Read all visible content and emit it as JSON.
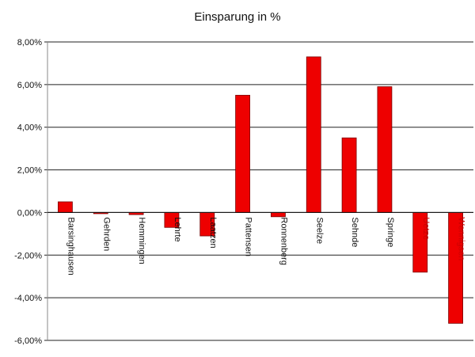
{
  "chart_data": {
    "type": "bar",
    "title": "Einsparung in %",
    "xlabel": "",
    "ylabel": "",
    "ylim": [
      -6,
      8
    ],
    "y_ticks": [
      "8,00%",
      "6,00%",
      "4,00%",
      "2,00%",
      "0,00%",
      "-2,00%",
      "-4,00%",
      "-6,00%"
    ],
    "y_tick_values": [
      8,
      6,
      4,
      2,
      0,
      -2,
      -4,
      -6
    ],
    "grid": true,
    "bar_color": "#ee0000",
    "bar_edge_color": "#7a0000",
    "categories": [
      "Barsinghausen",
      "Gehrden",
      "Hemmingen",
      "Lehrte",
      "Laatzen",
      "Pattensen",
      "Ronnenberg",
      "Seelze",
      "Sehnde",
      "Springe",
      "Uetze",
      "Wennigsen"
    ],
    "values": [
      0.5,
      -0.05,
      -0.1,
      -0.7,
      -1.1,
      5.5,
      -0.2,
      7.3,
      3.5,
      5.9,
      -2.8,
      -5.2
    ],
    "label_colors": [
      "#111111",
      "#111111",
      "#111111",
      "#111111",
      "#111111",
      "#111111",
      "#111111",
      "#111111",
      "#111111",
      "#111111",
      "#cc0000",
      "#cc0000"
    ]
  }
}
